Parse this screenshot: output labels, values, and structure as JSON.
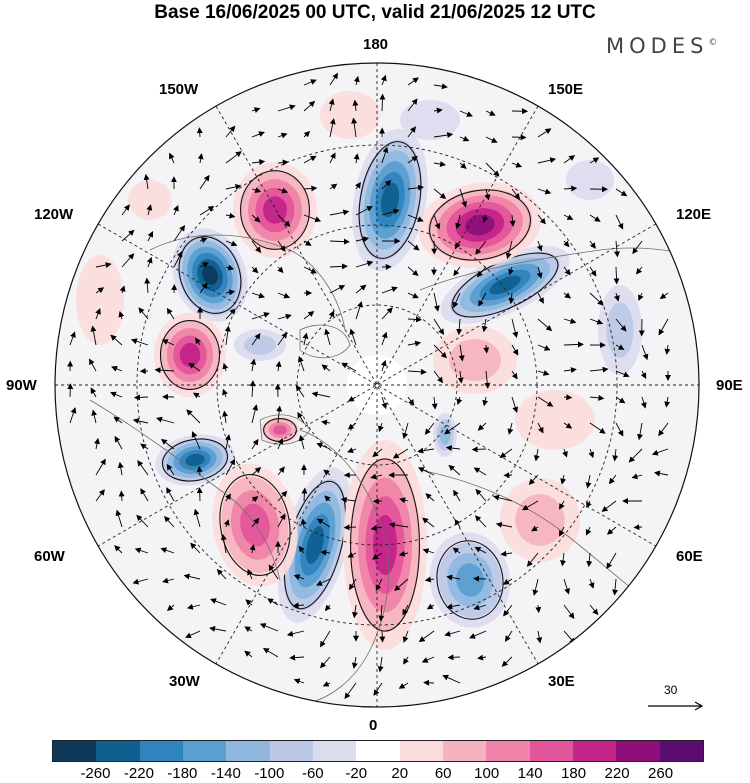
{
  "title": "Base 16/06/2025 00 UTC, valid 21/06/2025 12 UTC",
  "brand": "MODES",
  "brand_mark": "©",
  "longitude_labels": {
    "top": "180",
    "bottom": "0",
    "left": "90W",
    "right": "90E",
    "w150": "150W",
    "e150": "150E",
    "w120": "120W",
    "e120": "120E",
    "w60": "60W",
    "e60": "60E",
    "w30": "30W",
    "e30": "30E"
  },
  "reference_vector": {
    "label": "30"
  },
  "colorbar": {
    "colors": [
      "#0d3a5c",
      "#10608f",
      "#2f84bd",
      "#5b9ed0",
      "#90b8df",
      "#bcc9e6",
      "#dcdcef",
      "#ffffff",
      "#fbdcdc",
      "#f5b3c0",
      "#ef85a8",
      "#e3559b",
      "#c22489",
      "#8f0f7a",
      "#5b0c6f"
    ],
    "tick_labels": [
      "-260",
      "-220",
      "-180",
      "-140",
      "-100",
      "-60",
      "-20",
      "20",
      "60",
      "100",
      "140",
      "180",
      "220",
      "260"
    ]
  }
}
